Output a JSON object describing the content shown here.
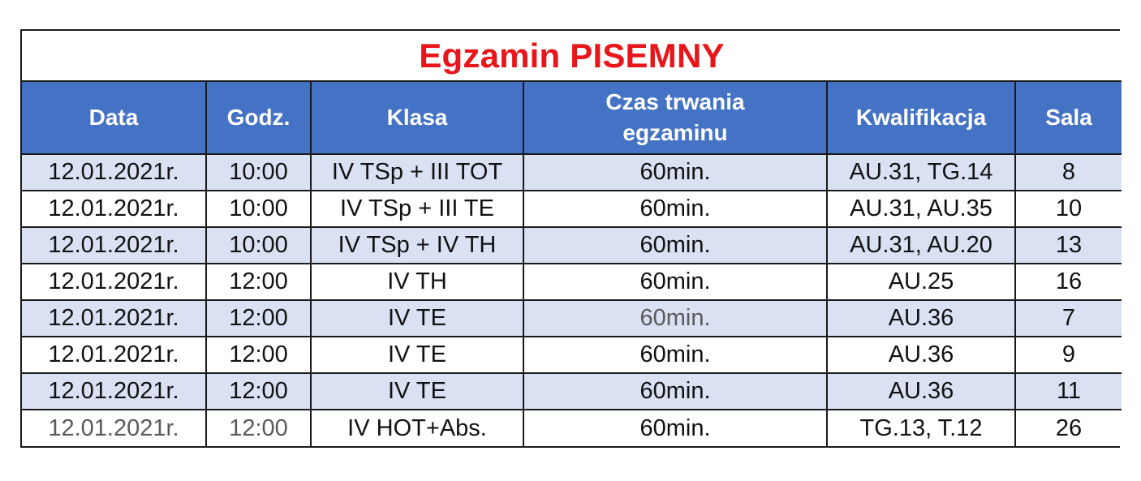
{
  "title": "Egzamin PISEMNY",
  "headers": {
    "date": "Data",
    "time": "Godz.",
    "class": "Klasa",
    "duration_line1": "Czas trwania",
    "duration_line2": "egzaminu",
    "qualification": "Kwalifikacja",
    "room": "Sala"
  },
  "colors": {
    "title": "#e8151b",
    "header_bg": "#4472c4",
    "header_text": "#ffffff",
    "shaded_row": "#d9e1f2"
  },
  "rows": [
    {
      "date": "12.01.2021r.",
      "time": "10:00",
      "class": "IV TSp + III TOT",
      "duration": "60min.",
      "qualification": "AU.31, TG.14",
      "room": "8"
    },
    {
      "date": "12.01.2021r.",
      "time": "10:00",
      "class": "IV TSp + III TE",
      "duration": "60min.",
      "qualification": "AU.31, AU.35",
      "room": "10"
    },
    {
      "date": "12.01.2021r.",
      "time": "10:00",
      "class": "IV TSp + IV TH",
      "duration": "60min.",
      "qualification": "AU.31, AU.20",
      "room": "13"
    },
    {
      "date": "12.01.2021r.",
      "time": "12:00",
      "class": "IV TH",
      "duration": "60min.",
      "qualification": "AU.25",
      "room": "16"
    },
    {
      "date": "12.01.2021r.",
      "time": "12:00",
      "class": "IV TE",
      "duration": "60min.",
      "qualification": "AU.36",
      "room": "7"
    },
    {
      "date": "12.01.2021r.",
      "time": "12:00",
      "class": "IV TE",
      "duration": "60min.",
      "qualification": "AU.36",
      "room": "9"
    },
    {
      "date": "12.01.2021r.",
      "time": "12:00",
      "class": "IV TE",
      "duration": "60min.",
      "qualification": "AU.36",
      "room": "11"
    },
    {
      "date": "12.01.2021r.",
      "time": "12:00",
      "class": "IV HOT+Abs.",
      "duration": "60min.",
      "qualification": "TG.13, T.12",
      "room": "26"
    }
  ]
}
